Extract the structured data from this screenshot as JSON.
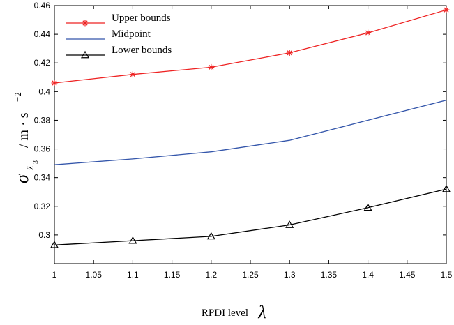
{
  "chart_data": {
    "type": "line",
    "x": [
      1.0,
      1.1,
      1.2,
      1.3,
      1.4,
      1.5
    ],
    "series": [
      {
        "name": "Upper bounds",
        "color": "#ee2222",
        "marker": "star",
        "values": [
          0.406,
          0.412,
          0.417,
          0.427,
          0.441,
          0.457
        ]
      },
      {
        "name": "Midpoint",
        "color": "#3355aa",
        "marker": "none",
        "values": [
          0.349,
          0.353,
          0.358,
          0.366,
          0.38,
          0.394
        ]
      },
      {
        "name": "Lower bounds",
        "color": "#000000",
        "marker": "triangle",
        "values": [
          0.293,
          0.296,
          0.299,
          0.307,
          0.319,
          0.332
        ]
      }
    ],
    "xlim": [
      1.0,
      1.5
    ],
    "ylim": [
      0.28,
      0.46
    ],
    "xticks": [
      "1",
      "1.05",
      "1.1",
      "1.15",
      "1.2",
      "1.25",
      "1.3",
      "1.35",
      "1.4",
      "1.45",
      "1.5"
    ],
    "yticks": [
      "0.3",
      "0.32",
      "0.34",
      "0.36",
      "0.38",
      "0.4",
      "0.42",
      "0.44",
      "0.46"
    ],
    "xlabel": "RPDI level",
    "xlabel_symbol": "λ",
    "ylabel": {
      "sigma": "σ",
      "sub": "z̈",
      "subsub": "3",
      "units": "/ m · s",
      "exp": "−2"
    },
    "legend_position": "top-left",
    "grid": false
  }
}
